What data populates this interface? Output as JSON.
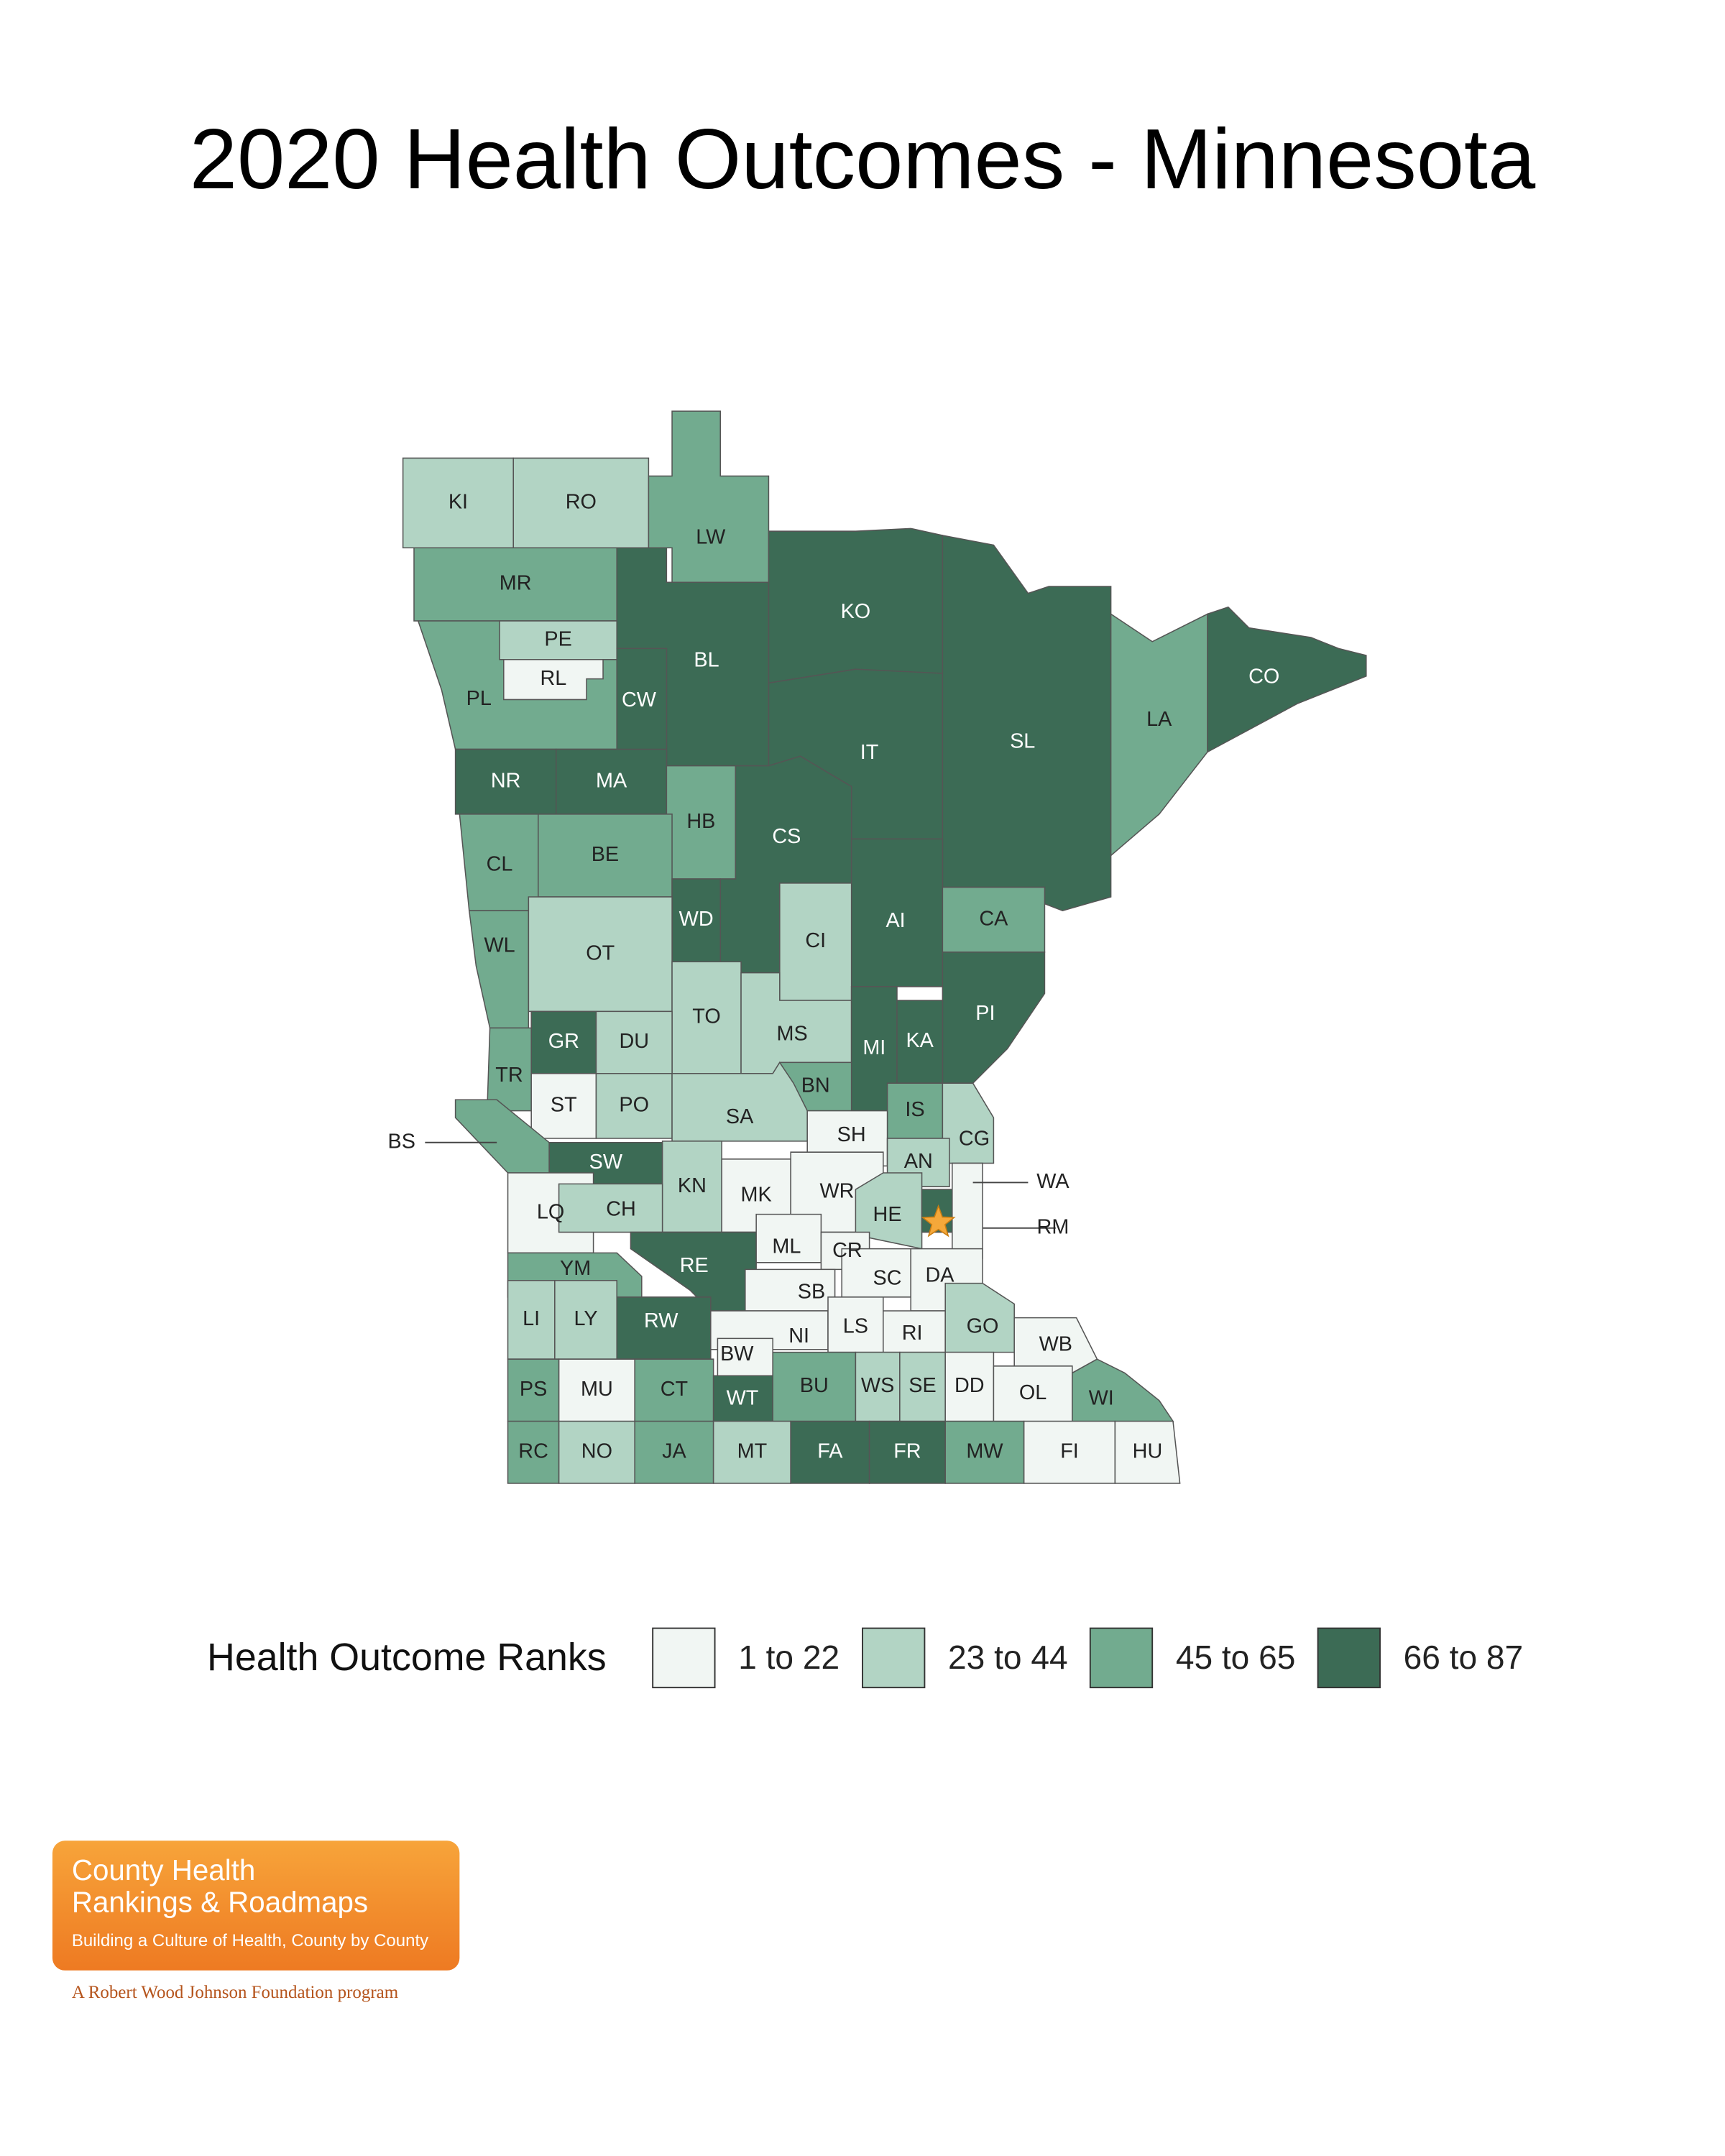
{
  "title": "2020 Health Outcomes - Minnesota",
  "legend": {
    "title": "Health Outcome Ranks",
    "items": [
      {
        "label": "1 to 22",
        "color": "#f1f6f3"
      },
      {
        "label": "23 to 44",
        "color": "#b2d4c4"
      },
      {
        "label": "45 to 65",
        "color": "#72ab8f"
      },
      {
        "label": "66 to 87",
        "color": "#3c6b55"
      }
    ]
  },
  "counties": [
    {
      "label": "KI",
      "class": 1
    },
    {
      "label": "RO",
      "class": 1
    },
    {
      "label": "LW",
      "class": 2
    },
    {
      "label": "MR",
      "class": 2
    },
    {
      "label": "PL",
      "class": 2
    },
    {
      "label": "PE",
      "class": 1
    },
    {
      "label": "RL",
      "class": 0
    },
    {
      "label": "BL",
      "class": 3
    },
    {
      "label": "CW",
      "class": 3
    },
    {
      "label": "KO",
      "class": 3
    },
    {
      "label": "IT",
      "class": 3
    },
    {
      "label": "SL",
      "class": 3
    },
    {
      "label": "LA",
      "class": 2
    },
    {
      "label": "CO",
      "class": 3
    },
    {
      "label": "NR",
      "class": 3
    },
    {
      "label": "MA",
      "class": 3
    },
    {
      "label": "HB",
      "class": 2
    },
    {
      "label": "CS",
      "class": 3
    },
    {
      "label": "CL",
      "class": 2
    },
    {
      "label": "BE",
      "class": 2
    },
    {
      "label": "WD",
      "class": 3
    },
    {
      "label": "AI",
      "class": 3
    },
    {
      "label": "CA",
      "class": 2
    },
    {
      "label": "CI",
      "class": 1
    },
    {
      "label": "WL",
      "class": 2
    },
    {
      "label": "OT",
      "class": 1
    },
    {
      "label": "TO",
      "class": 1
    },
    {
      "label": "MS",
      "class": 1
    },
    {
      "label": "MI",
      "class": 3
    },
    {
      "label": "PI",
      "class": 3
    },
    {
      "label": "KA",
      "class": 3
    },
    {
      "label": "GR",
      "class": 3
    },
    {
      "label": "DU",
      "class": 1
    },
    {
      "label": "TR",
      "class": 2
    },
    {
      "label": "BN",
      "class": 2
    },
    {
      "label": "IS",
      "class": 2
    },
    {
      "label": "ST",
      "class": 0
    },
    {
      "label": "PO",
      "class": 1
    },
    {
      "label": "SA",
      "class": 1
    },
    {
      "label": "SH",
      "class": 0
    },
    {
      "label": "CG",
      "class": 1
    },
    {
      "label": "BS",
      "class": 2
    },
    {
      "label": "SW",
      "class": 3
    },
    {
      "label": "KN",
      "class": 1
    },
    {
      "label": "AN",
      "class": 1
    },
    {
      "label": "MK",
      "class": 0
    },
    {
      "label": "WR",
      "class": 0
    },
    {
      "label": "HE",
      "class": 1
    },
    {
      "label": "RM",
      "class": 3
    },
    {
      "label": "WA",
      "class": 0
    },
    {
      "label": "LQ",
      "class": 0
    },
    {
      "label": "CH",
      "class": 1
    },
    {
      "label": "YM",
      "class": 2
    },
    {
      "label": "RE",
      "class": 3
    },
    {
      "label": "ML",
      "class": 0
    },
    {
      "label": "CR",
      "class": 0
    },
    {
      "label": "SC",
      "class": 0
    },
    {
      "label": "DA",
      "class": 0
    },
    {
      "label": "SB",
      "class": 0
    },
    {
      "label": "LI",
      "class": 1
    },
    {
      "label": "LY",
      "class": 1
    },
    {
      "label": "RW",
      "class": 3
    },
    {
      "label": "NI",
      "class": 0
    },
    {
      "label": "LS",
      "class": 0
    },
    {
      "label": "RI",
      "class": 0
    },
    {
      "label": "GO",
      "class": 1
    },
    {
      "label": "WB",
      "class": 0
    },
    {
      "label": "BW",
      "class": 0
    },
    {
      "label": "PS",
      "class": 2
    },
    {
      "label": "MU",
      "class": 0
    },
    {
      "label": "CT",
      "class": 2
    },
    {
      "label": "WT",
      "class": 3
    },
    {
      "label": "BU",
      "class": 2
    },
    {
      "label": "WS",
      "class": 1
    },
    {
      "label": "SE",
      "class": 1
    },
    {
      "label": "DD",
      "class": 0
    },
    {
      "label": "OL",
      "class": 0
    },
    {
      "label": "WI",
      "class": 2
    },
    {
      "label": "RC",
      "class": 2
    },
    {
      "label": "NO",
      "class": 1
    },
    {
      "label": "JA",
      "class": 2
    },
    {
      "label": "MT",
      "class": 1
    },
    {
      "label": "FA",
      "class": 3
    },
    {
      "label": "FR",
      "class": 3
    },
    {
      "label": "MW",
      "class": 2
    },
    {
      "label": "FI",
      "class": 0
    },
    {
      "label": "HU",
      "class": 0
    }
  ],
  "logo": {
    "line1": "County Health",
    "line2": "Rankings & Roadmaps",
    "tagline": "Building a Culture of Health, County by County",
    "sponsor": "A Robert Wood Johnson Foundation program"
  }
}
